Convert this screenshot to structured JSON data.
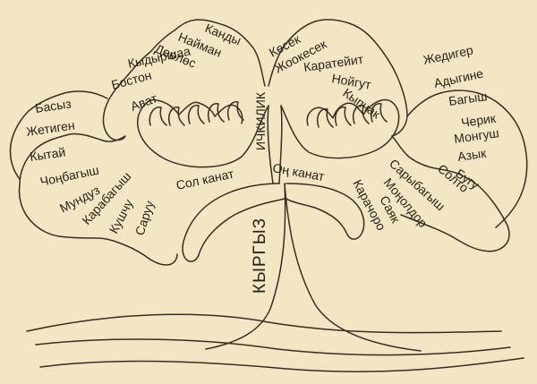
{
  "trunk": "КЫРГЫЗ",
  "center": "ИЧКИЛИК",
  "left_wing": "Сол канат",
  "right_wing": "Оң канат",
  "top_left_branch": [
    "Канды",
    "Найман",
    "Дөөлөс",
    "Кыдыршаа",
    "Бостон",
    "Бостон",
    "Ават"
  ],
  "top_right_branch": [
    "Кесек",
    "Жоокесек",
    "Каратейит",
    "Нойгут",
    "Кыпчак"
  ],
  "left_branch": [
    "Басыз",
    "Жетиген",
    "Кытай",
    "Чоңбагыш",
    "Мундуз",
    "Карабагыш",
    "Кушчу",
    "Саруу"
  ],
  "right_branch": [
    "Жедигер",
    "Адыгине",
    "Багыш",
    "Черик",
    "Монгуш",
    "Азык",
    "Бугу",
    "Солто",
    "Сарыбагыш",
    "Моңолдор",
    "Саяк",
    "Карачоро"
  ]
}
